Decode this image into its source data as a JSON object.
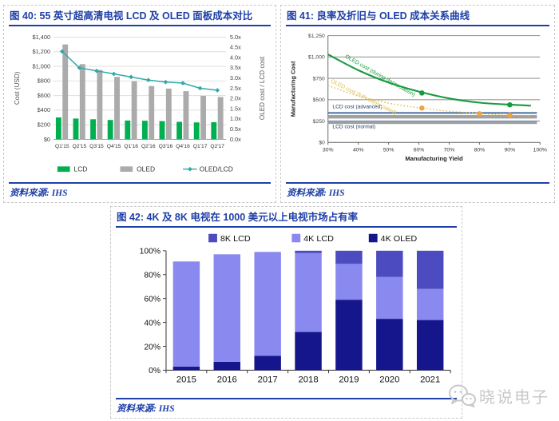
{
  "page": {
    "watermark": {
      "text": "晓说电子",
      "icon": "wechat-icon"
    }
  },
  "figures": {
    "fig40": {
      "title": "图 40: 55 英寸超高清电视 LCD 及 OLED 面板成本对比",
      "source": "资料来源: IHS"
    },
    "fig41": {
      "title": "图 41: 良率及折旧与 OLED 成本关系曲线",
      "source": "资料来源: IHS"
    },
    "fig42": {
      "title": "图 42: 4K 及 8K 电视在 1000 美元以上电视市场占有率",
      "source": "资料来源: IHS"
    }
  },
  "chart_data": [
    {
      "id": "fig40",
      "type": "bar",
      "title": "55 英寸超高清电视 LCD 及 OLED 面板成本对比",
      "categories": [
        "Q1'15",
        "Q2'15",
        "Q3'15",
        "Q4'15",
        "Q1'16",
        "Q2'16",
        "Q3'16",
        "Q4'16",
        "Q1'17",
        "Q2'17"
      ],
      "series": [
        {
          "name": "LCD",
          "type": "bar",
          "color": "#00B050",
          "values": [
            300,
            285,
            275,
            265,
            258,
            255,
            250,
            240,
            232,
            235
          ]
        },
        {
          "name": "OLED",
          "type": "bar",
          "color": "#ABABAB",
          "values": [
            1300,
            1030,
            950,
            855,
            795,
            730,
            695,
            660,
            595,
            580
          ]
        },
        {
          "name": "OLED/LCD",
          "type": "line",
          "color": "#33A9A9",
          "axis": "right",
          "values": [
            4.3,
            3.5,
            3.35,
            3.2,
            3.05,
            2.9,
            2.8,
            2.75,
            2.5,
            2.4
          ]
        }
      ],
      "ylabel": "Cost (USD)",
      "y2label": "OLED cost / LCD cost",
      "ylim": [
        0,
        1400
      ],
      "ytick_step": 200,
      "y2lim": [
        0,
        5
      ],
      "y2tick_step": 0.5,
      "grid": true,
      "legend_position": "bottom"
    },
    {
      "id": "fig41",
      "type": "line",
      "xlabel": "Manufacturing Yield",
      "ylabel": "Manufacturing Cost",
      "xlim": [
        30,
        100
      ],
      "xtick_step": 10,
      "ylim": [
        0,
        1250
      ],
      "ytick_step": 250,
      "grid": true,
      "series": [
        {
          "name": "OLED cost (during depreciation)",
          "style": "solid",
          "color": "#179B3E",
          "x": [
            30,
            40,
            50,
            60,
            70,
            80,
            90,
            97
          ],
          "y": [
            1030,
            845,
            700,
            595,
            515,
            465,
            442,
            430
          ],
          "markers": [
            [
              61,
              578
            ],
            [
              90,
              440
            ]
          ],
          "marker_color": "#179B3E",
          "label_pos": [
            35.5,
            995
          ],
          "label_angle": 30
        },
        {
          "name": "OLED cost (fully depreciated)",
          "style": "dotted",
          "color": "#E2BE4B",
          "x": [
            30,
            40,
            50,
            60,
            70,
            80,
            90,
            97
          ],
          "y": [
            665,
            545,
            460,
            405,
            365,
            338,
            318,
            310
          ],
          "markers": [
            [
              61,
              402
            ],
            [
              80,
              335
            ],
            [
              90,
              318
            ]
          ],
          "marker_color": "#F2A33C",
          "label_pos": [
            30.8,
            705
          ],
          "label_angle": 27
        },
        {
          "name": "LCD cost (advanced)",
          "style": "hline",
          "color": "#2E5A94",
          "value": 345,
          "band_value": 302,
          "band_color": "#A0A0A0",
          "label_pos": [
            31.5,
            398
          ]
        },
        {
          "name": "LCD cost (normal)",
          "style": "hline",
          "color": "#7F9EC8",
          "value": 245,
          "band_value": 238,
          "band_color": "#A0A0A0",
          "label_pos": [
            31.5,
            168
          ]
        }
      ]
    },
    {
      "id": "fig42",
      "type": "stacked-bar",
      "categories": [
        "2015",
        "2016",
        "2017",
        "2018",
        "2019",
        "2020",
        "2021"
      ],
      "series": [
        {
          "name": "4K OLED",
          "color": "#16168C",
          "values": [
            3,
            7,
            12,
            32,
            59,
            43,
            42
          ]
        },
        {
          "name": "4K LCD",
          "color": "#8989F0",
          "values": [
            88,
            90,
            87,
            66,
            30,
            35,
            26
          ]
        },
        {
          "name": "8K LCD",
          "color": "#4C4CC0",
          "values": [
            0,
            0,
            0,
            2,
            11,
            22,
            32
          ]
        }
      ],
      "legend_order": [
        "8K LCD",
        "4K LCD",
        "4K OLED"
      ],
      "ylim": [
        0,
        100
      ],
      "ytick_step": 20,
      "ytick_format": "percent",
      "legend_position": "top"
    }
  ]
}
